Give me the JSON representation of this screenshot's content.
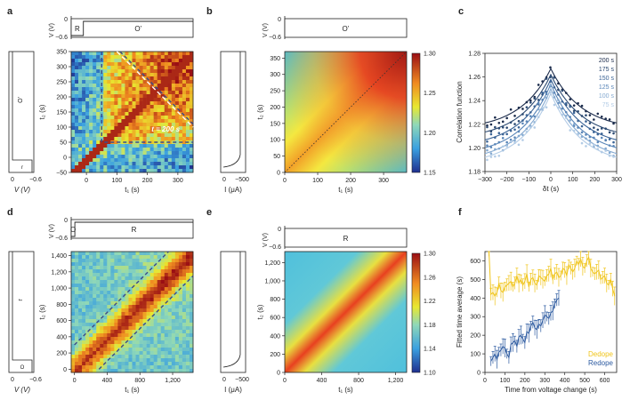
{
  "panels": {
    "a": "a",
    "b": "b",
    "c": "c",
    "d": "d",
    "e": "e",
    "f": "f"
  },
  "top_strip": {
    "ylabel": "V (V)",
    "tick0": "0",
    "tick1": "−0.6",
    "a_labels": [
      "R",
      "O’"
    ],
    "b_label": "O’",
    "d_labels": [
      "O",
      "R"
    ],
    "e_label": "R"
  },
  "side_strip": {
    "a_xlabel": "V (V)",
    "a_ticks": [
      "0",
      "−0.6"
    ],
    "a_labels": [
      "O’",
      "r"
    ],
    "d_xlabel": "V (V)",
    "d_ticks": [
      "0",
      "−0.6"
    ],
    "d_labels": [
      "r",
      "O"
    ],
    "current_xlabel": "I (μA)",
    "current_ticks": [
      "0",
      "−500"
    ]
  },
  "chart_data": [
    {
      "id": "a",
      "type": "heatmap",
      "xlabel": "t₁ (s)",
      "ylabel": "t₂ (s)",
      "xticks": [
        "0",
        "100",
        "200",
        "300"
      ],
      "yticks": [
        "−50",
        "0",
        "50",
        "100",
        "150",
        "200",
        "250",
        "300",
        "350"
      ],
      "xlim": [
        -50,
        350
      ],
      "ylim": [
        -50,
        350
      ],
      "annotation": "t = 200 s"
    },
    {
      "id": "b",
      "type": "heatmap",
      "xlabel": "t₁ (s)",
      "ylabel": "t₂ (s)",
      "xticks": [
        "0",
        "100",
        "200",
        "300"
      ],
      "yticks": [
        "0",
        "50",
        "100",
        "150",
        "200",
        "250",
        "300",
        "350"
      ],
      "xlim": [
        0,
        370
      ],
      "ylim": [
        0,
        370
      ],
      "colorbar_ticks": [
        "1.30",
        "1.25",
        "1.20",
        "1.15"
      ],
      "colorbar_range": [
        1.15,
        1.3
      ]
    },
    {
      "id": "c",
      "type": "line",
      "xlabel": "δt (s)",
      "ylabel": "Correlation function",
      "xticks": [
        "−300",
        "−200",
        "−100",
        "0",
        "100",
        "200",
        "300"
      ],
      "yticks": [
        "1.18",
        "1.20",
        "1.22",
        "1.24",
        "1.26",
        "1.28"
      ],
      "xlim": [
        -300,
        300
      ],
      "ylim": [
        1.18,
        1.28
      ],
      "series": [
        {
          "name": "200 s",
          "color": "#1b2b4b",
          "peak": 1.267,
          "base": 1.215
        },
        {
          "name": "175 s",
          "color": "#2c4a72",
          "peak": 1.262,
          "base": 1.207
        },
        {
          "name": "150 s",
          "color": "#3b6496",
          "peak": 1.258,
          "base": 1.2
        },
        {
          "name": "125 s",
          "color": "#5a86b8",
          "peak": 1.254,
          "base": 1.193
        },
        {
          "name": "100 s",
          "color": "#84a9d0",
          "peak": 1.25,
          "base": 1.188
        },
        {
          "name": "75 s",
          "color": "#b3cce6",
          "peak": 1.246,
          "base": 1.185
        }
      ]
    },
    {
      "id": "d",
      "type": "heatmap",
      "xlabel": "t₁ (s)",
      "ylabel": "t₂ (s)",
      "xticks": [
        "0",
        "400",
        "800",
        "1,200"
      ],
      "yticks": [
        "0",
        "200",
        "400",
        "600",
        "800",
        "1,000",
        "1,200",
        "1,400"
      ],
      "xlim": [
        -40,
        1450
      ],
      "ylim": [
        -40,
        1450
      ]
    },
    {
      "id": "e",
      "type": "heatmap",
      "xlabel": "t₁ (s)",
      "ylabel": "t₂ (s)",
      "xticks": [
        "0",
        "400",
        "800",
        "1,200"
      ],
      "yticks": [
        "0",
        "200",
        "400",
        "600",
        "800",
        "1,000",
        "1,200"
      ],
      "xlim": [
        0,
        1320
      ],
      "ylim": [
        0,
        1320
      ],
      "colorbar_ticks": [
        "1.30",
        "1.26",
        "1.22",
        "1.18",
        "1.14",
        "1.10"
      ],
      "colorbar_range": [
        1.1,
        1.3
      ]
    },
    {
      "id": "f",
      "type": "line",
      "xlabel": "Time from voltage change (s)",
      "ylabel": "Fitted time average (s)",
      "xticks": [
        "0",
        "100",
        "200",
        "300",
        "400",
        "500",
        "600"
      ],
      "yticks": [
        "0",
        "100",
        "200",
        "300",
        "400",
        "500",
        "600"
      ],
      "xlim": [
        0,
        660
      ],
      "ylim": [
        0,
        650
      ],
      "series": [
        {
          "name": "Dedope",
          "color": "#f0c419",
          "x": [
            20,
            30,
            40,
            50,
            60,
            70,
            80,
            90,
            100,
            110,
            120,
            130,
            140,
            150,
            160,
            170,
            180,
            190,
            200,
            210,
            220,
            230,
            240,
            250,
            260,
            270,
            280,
            290,
            300,
            310,
            320,
            330,
            340,
            350,
            360,
            370,
            380,
            390,
            400,
            410,
            420,
            430,
            440,
            450,
            460,
            470,
            480,
            490,
            500,
            510,
            520,
            530,
            540,
            550,
            560,
            570,
            580,
            590,
            600,
            610,
            620,
            630,
            640,
            650
          ],
          "y": [
            650,
            420,
            430,
            410,
            430,
            480,
            440,
            430,
            460,
            470,
            480,
            490,
            460,
            480,
            520,
            480,
            500,
            470,
            490,
            530,
            460,
            500,
            510,
            480,
            470,
            520,
            510,
            500,
            490,
            520,
            530,
            560,
            500,
            530,
            540,
            510,
            520,
            560,
            550,
            520,
            580,
            560,
            540,
            560,
            600,
            580,
            610,
            570,
            560,
            600,
            620,
            560,
            540,
            530,
            540,
            550,
            500,
            510,
            520,
            480,
            470,
            500,
            450,
            410
          ]
        },
        {
          "name": "Redope",
          "color": "#2c5aa0",
          "x": [
            30,
            40,
            50,
            60,
            70,
            80,
            90,
            100,
            110,
            120,
            130,
            140,
            150,
            160,
            170,
            180,
            190,
            200,
            210,
            220,
            230,
            240,
            250,
            260,
            270,
            280,
            290,
            300,
            310,
            320,
            330,
            340,
            350,
            360,
            370
          ],
          "y": [
            60,
            80,
            100,
            70,
            110,
            120,
            140,
            130,
            100,
            80,
            150,
            160,
            170,
            140,
            190,
            200,
            180,
            160,
            220,
            210,
            250,
            270,
            240,
            230,
            260,
            250,
            280,
            310,
            300,
            290,
            320,
            330,
            370,
            390,
            400
          ]
        }
      ]
    }
  ]
}
